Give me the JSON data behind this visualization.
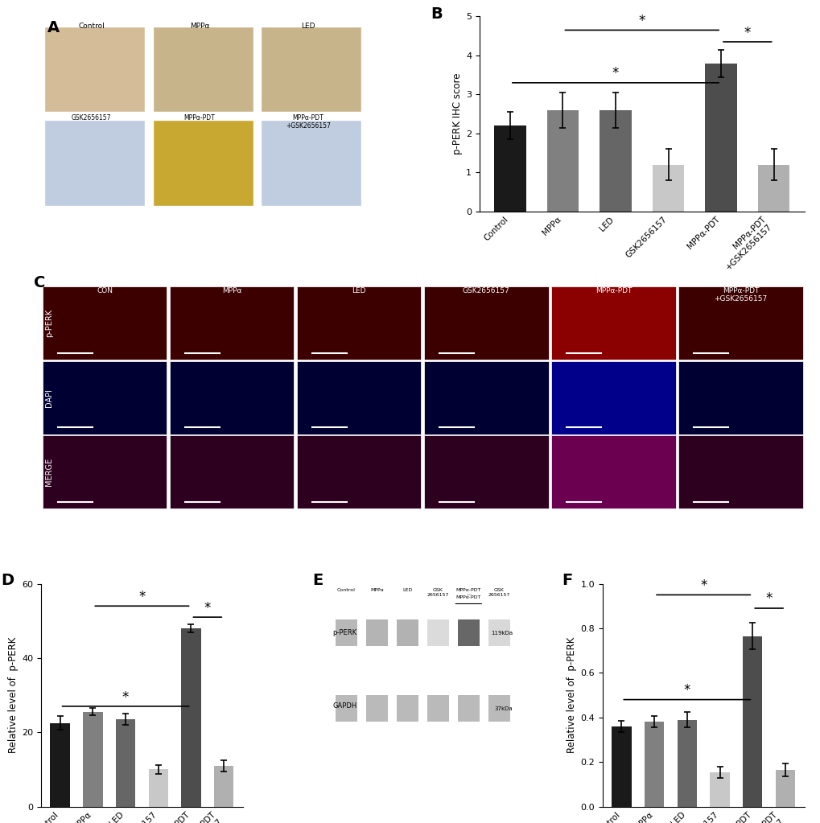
{
  "categories": [
    "Control",
    "MPPα",
    "LED",
    "GSK2656157",
    "MPPα-PDT",
    "MPPα-PDT\n+GSK2656157"
  ],
  "categories_rotated": [
    "Control",
    "MPPα",
    "LED",
    "GSK2656157",
    "MPPα-PDT",
    "MPPα-PDT\n+GSK2656157"
  ],
  "B_values": [
    2.2,
    2.6,
    2.6,
    1.2,
    3.8,
    1.2
  ],
  "B_errors": [
    0.35,
    0.45,
    0.45,
    0.4,
    0.35,
    0.4
  ],
  "B_ylabel": "p-PERK IHC score",
  "B_ylim": [
    0,
    5
  ],
  "B_yticks": [
    0,
    1,
    2,
    3,
    4,
    5
  ],
  "D_values": [
    22.5,
    25.5,
    23.5,
    10.0,
    48.0,
    11.0
  ],
  "D_errors": [
    1.8,
    1.0,
    1.5,
    1.2,
    1.0,
    1.5
  ],
  "D_ylabel": "Relative level of  p-PERK",
  "D_ylim": [
    0,
    60
  ],
  "D_yticks": [
    0,
    20,
    40,
    60
  ],
  "F_values": [
    0.36,
    0.38,
    0.39,
    0.155,
    0.765,
    0.165
  ],
  "F_errors": [
    0.025,
    0.025,
    0.035,
    0.025,
    0.06,
    0.03
  ],
  "F_ylabel": "Relative level of  p-PERK",
  "F_ylim": [
    0,
    1.0
  ],
  "F_yticks": [
    0.0,
    0.2,
    0.4,
    0.6,
    0.8,
    1.0
  ],
  "bar_colors": [
    "#1a1a1a",
    "#808080",
    "#666666",
    "#c8c8c8",
    "#4d4d4d",
    "#b0b0b0"
  ],
  "background_color": "#ffffff",
  "sig_line_color": "#000000",
  "sig_marker": "*",
  "panel_labels": [
    "A",
    "B",
    "C",
    "D",
    "E",
    "F"
  ]
}
